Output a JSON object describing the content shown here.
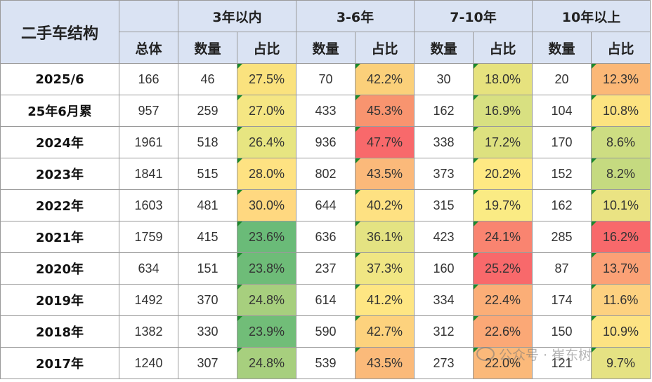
{
  "table": {
    "corner_label": "二手车结构",
    "groups": [
      "3年以内",
      "3-6年",
      "7-10年",
      "10年以上"
    ],
    "total_label": "总体",
    "count_label": "数量",
    "share_label": "占比",
    "rows": [
      {
        "label": "2025/6",
        "total": "166",
        "c1": "46",
        "p1": "27.5%",
        "c2": "70",
        "p2": "42.2%",
        "c3": "30",
        "p3": "18.0%",
        "c4": "20",
        "p4": "12.3%",
        "colors": [
          "#fae27e",
          "#fbd07a",
          "#e6e27e",
          "#fbb877"
        ]
      },
      {
        "label": "25年6月累",
        "total": "957",
        "c1": "259",
        "p1": "27.0%",
        "c2": "433",
        "p2": "45.3%",
        "c3": "162",
        "p3": "16.9%",
        "c4": "104",
        "p4": "10.8%",
        "colors": [
          "#f5e683",
          "#f8946f",
          "#d8e081",
          "#fce380"
        ]
      },
      {
        "label": "2024年",
        "total": "1961",
        "c1": "518",
        "p1": "26.4%",
        "c2": "936",
        "p2": "47.7%",
        "c3": "338",
        "p3": "17.2%",
        "c4": "170",
        "p4": "8.6%",
        "colors": [
          "#e7e581",
          "#f8696b",
          "#dde17f",
          "#cddd82"
        ]
      },
      {
        "label": "2023年",
        "total": "1841",
        "c1": "515",
        "p1": "28.0%",
        "c2": "802",
        "p2": "43.5%",
        "c3": "373",
        "p3": "20.2%",
        "c4": "152",
        "p4": "8.2%",
        "colors": [
          "#fee282",
          "#fbb97a",
          "#fee983",
          "#c5da80"
        ]
      },
      {
        "label": "2022年",
        "total": "1603",
        "c1": "481",
        "p1": "30.0%",
        "c2": "644",
        "p2": "40.2%",
        "c3": "315",
        "p3": "19.7%",
        "c4": "162",
        "p4": "10.1%",
        "colors": [
          "#ffd880",
          "#fee182",
          "#faeb84",
          "#eae383"
        ]
      },
      {
        "label": "2021年",
        "total": "1759",
        "c1": "415",
        "p1": "23.6%",
        "c2": "636",
        "p2": "36.1%",
        "c3": "423",
        "p3": "24.1%",
        "c4": "285",
        "p4": "16.2%",
        "colors": [
          "#6abb78",
          "#e4e382",
          "#f98470",
          "#f8696b"
        ]
      },
      {
        "label": "2020年",
        "total": "634",
        "c1": "151",
        "p1": "23.8%",
        "c2": "237",
        "p2": "37.3%",
        "c3": "160",
        "p3": "25.2%",
        "c4": "87",
        "p4": "13.7%",
        "colors": [
          "#6ebc78",
          "#f0e683",
          "#f8696b",
          "#fba176"
        ]
      },
      {
        "label": "2019年",
        "total": "1492",
        "c1": "370",
        "p1": "24.8%",
        "c2": "614",
        "p2": "41.2%",
        "c3": "334",
        "p3": "22.4%",
        "c4": "174",
        "p4": "11.6%",
        "colors": [
          "#a7cf7e",
          "#fee683",
          "#fbae77",
          "#fdd180"
        ]
      },
      {
        "label": "2018年",
        "total": "1382",
        "c1": "330",
        "p1": "23.9%",
        "c2": "590",
        "p2": "42.7%",
        "c3": "312",
        "p3": "22.6%",
        "c4": "150",
        "p4": "10.9%",
        "colors": [
          "#71bd78",
          "#fdd27d",
          "#fba876",
          "#fde383"
        ]
      },
      {
        "label": "2017年",
        "total": "1240",
        "c1": "307",
        "p1": "24.8%",
        "c2": "539",
        "p2": "43.5%",
        "c3": "273",
        "p3": "22.0%",
        "c4": "121",
        "p4": "9.7%",
        "colors": [
          "#a7cf7e",
          "#fbba7a",
          "#fbb97a",
          "#e5e283"
        ]
      }
    ]
  },
  "watermark": {
    "text": "公众号 · 崔东树",
    "logo_icon": "wechat-icon"
  }
}
